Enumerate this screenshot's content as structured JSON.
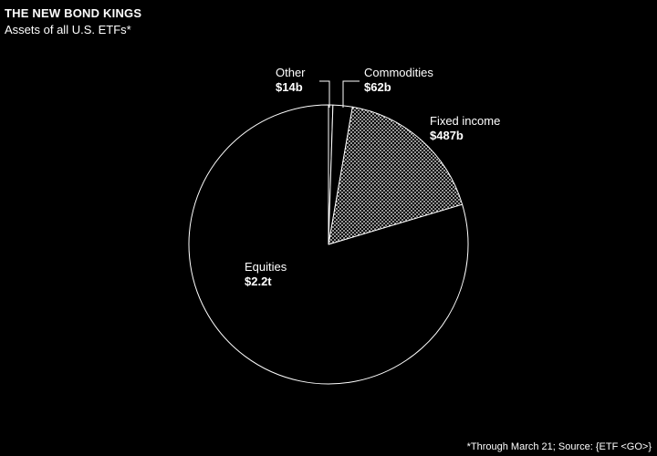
{
  "header": {
    "title": "THE NEW BOND KINGS",
    "subtitle": "Assets of all U.S. ETFs*"
  },
  "footer": {
    "note": "*Through March 21; Source: {ETF <GO>}"
  },
  "chart_data": {
    "type": "pie",
    "title": "THE NEW BOND KINGS",
    "subtitle": "Assets of all U.S. ETFs*",
    "unit": "USD billions",
    "slices": [
      {
        "name": "Other",
        "value": 14,
        "label": "$14b",
        "fill": "none"
      },
      {
        "name": "Commodities",
        "value": 62,
        "label": "$62b",
        "fill": "none"
      },
      {
        "name": "Fixed income",
        "value": 487,
        "label": "$487b",
        "fill": "dotted"
      },
      {
        "name": "Equities",
        "value": 2200,
        "label": "$2.2t",
        "fill": "none"
      }
    ],
    "start_angle_deg": 0,
    "direction": "clockwise",
    "colors": {
      "background": "#000000",
      "stroke": "#ffffff",
      "pattern": "#ffffff"
    }
  }
}
